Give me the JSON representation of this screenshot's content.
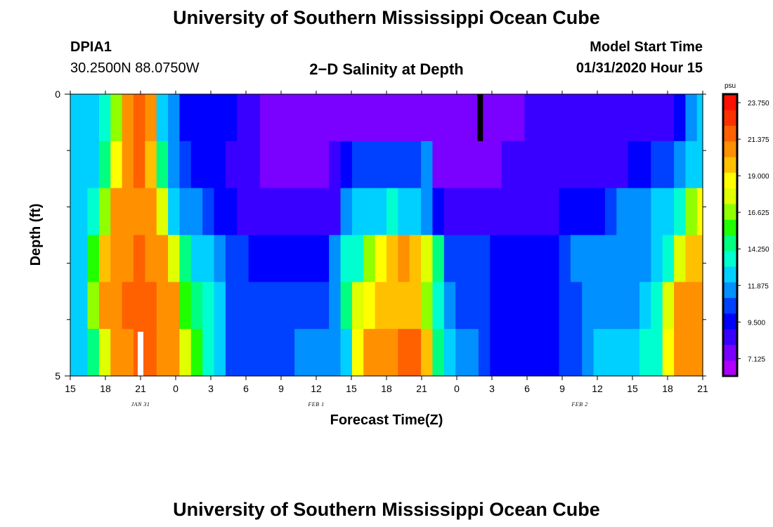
{
  "header": {
    "title": "University of Southern Mississippi Ocean Cube",
    "station_id": "DPIA1",
    "station_coords": "30.2500N 88.0750W",
    "plot_title": "2−D Salinity at Depth",
    "model_start_label": "Model Start Time",
    "model_start_value": "01/31/2020 Hour 15"
  },
  "footer": {
    "title": "University of Southern Mississippi Ocean Cube"
  },
  "chart_data": {
    "type": "heatmap",
    "title": "2−D Salinity at Depth",
    "xlabel": "Forecast Time(Z)",
    "ylabel": "Depth (ft)",
    "x_tick_labels": [
      "15",
      "18",
      "21",
      "0",
      "3",
      "6",
      "9",
      "12",
      "15",
      "18",
      "21",
      "0",
      "3",
      "6",
      "9",
      "12",
      "15",
      "18",
      "21"
    ],
    "date_labels": [
      {
        "text": "JAN 31",
        "at_tick": 2
      },
      {
        "text": "FEB 1",
        "at_tick": 7
      },
      {
        "text": "FEB 2",
        "at_tick": 14.5
      }
    ],
    "y_tick_labels": [
      "0",
      "5"
    ],
    "ylim": [
      0,
      5
    ],
    "colorbar": {
      "unit": "psu",
      "range": [
        6.0,
        24.3
      ],
      "tick_labels": [
        "23.750",
        "21.375",
        "19.000",
        "16.625",
        "14.250",
        "11.875",
        "9.500",
        "7.125"
      ],
      "tick_values": [
        23.75,
        21.375,
        19.0,
        16.625,
        14.25,
        11.875,
        9.5,
        7.125
      ],
      "colors": [
        "#b000ff",
        "#7a00ff",
        "#3a00ff",
        "#0000ff",
        "#0040ff",
        "#0090ff",
        "#00d0ff",
        "#00ffd0",
        "#00ff80",
        "#20ff00",
        "#90ff00",
        "#e0ff00",
        "#ffff00",
        "#ffc000",
        "#ff9000",
        "#ff6000",
        "#ff3000",
        "#ff1000"
      ]
    },
    "x_hours": [
      15,
      16,
      17,
      18,
      19,
      20,
      21,
      22,
      23,
      24,
      25,
      26,
      27,
      28,
      29,
      30,
      31,
      32,
      33,
      34,
      35,
      36,
      37,
      38,
      39,
      40,
      41,
      42,
      43,
      44,
      45,
      46,
      47,
      48,
      49,
      50,
      51,
      52,
      53,
      54,
      55,
      56,
      57,
      58,
      59,
      60,
      61,
      62,
      63,
      64,
      65,
      66,
      67,
      68,
      69,
      70
    ],
    "depth_layers": [
      {
        "name": "layer-1",
        "values": [
          12.2,
          12.2,
          12.6,
          13.8,
          16.2,
          20.7,
          21.9,
          20.5,
          13.0,
          11.5,
          10.0,
          9.7,
          9.2,
          9.2,
          9.3,
          9.0,
          8.7,
          8.0,
          7.3,
          7.3,
          7.4,
          7.4,
          7.4,
          7.4,
          7.5,
          7.6,
          7.6,
          7.6,
          7.6,
          7.6,
          7.6,
          7.6,
          7.5,
          7.4,
          7.4,
          7.6,
          7.8,
          7.8,
          8.0,
          8.0,
          8.2,
          8.3,
          8.4,
          8.5,
          8.6,
          8.7,
          8.7,
          8.8,
          8.9,
          9.0,
          9.0,
          9.0,
          9.0,
          9.2,
          11.5,
          12.2
        ]
      },
      {
        "name": "layer-2",
        "values": [
          12.6,
          12.6,
          12.6,
          14.9,
          18.3,
          20.7,
          21.6,
          19.7,
          14.6,
          12.0,
          10.9,
          9.6,
          9.2,
          9.2,
          8.9,
          8.3,
          8.1,
          7.9,
          7.9,
          7.9,
          7.9,
          7.9,
          7.9,
          8.2,
          9.6,
          10.5,
          10.5,
          10.5,
          10.5,
          10.5,
          10.9,
          11.3,
          7.9,
          7.9,
          7.9,
          7.9,
          8.0,
          8.0,
          8.2,
          8.3,
          8.3,
          8.3,
          8.3,
          8.3,
          8.4,
          8.5,
          8.5,
          8.8,
          9.0,
          9.5,
          9.7,
          10.1,
          10.6,
          11.3,
          12.3,
          12.9
        ]
      },
      {
        "name": "layer-3",
        "values": [
          12.8,
          12.8,
          13.3,
          16.5,
          20.4,
          20.6,
          20.7,
          20.5,
          17.2,
          13.0,
          12.0,
          11.3,
          10.6,
          9.9,
          9.2,
          9.0,
          8.6,
          8.6,
          8.6,
          8.5,
          8.5,
          8.5,
          8.6,
          8.8,
          11.8,
          12.6,
          12.6,
          12.9,
          13.7,
          13.0,
          12.3,
          11.2,
          9.2,
          8.7,
          8.7,
          8.7,
          8.7,
          8.7,
          8.8,
          8.8,
          8.9,
          8.9,
          9.0,
          9.2,
          9.4,
          9.6,
          10.0,
          10.9,
          11.3,
          11.5,
          11.6,
          12.1,
          12.7,
          14.0,
          17.0,
          18.3
        ]
      },
      {
        "name": "layer-4",
        "values": [
          12.5,
          12.5,
          15.5,
          19.9,
          20.8,
          21.1,
          21.3,
          20.9,
          20.5,
          17.4,
          14.6,
          12.9,
          12.2,
          11.4,
          10.4,
          10.4,
          9.9,
          9.7,
          9.7,
          9.7,
          9.7,
          9.7,
          9.7,
          11.2,
          13.4,
          13.9,
          16.5,
          19.0,
          20.0,
          20.4,
          20.0,
          17.4,
          14.2,
          10.7,
          10.4,
          10.4,
          10.4,
          9.6,
          9.4,
          9.4,
          9.4,
          9.5,
          10.0,
          10.4,
          11.2,
          11.4,
          11.6,
          11.6,
          11.6,
          11.7,
          11.8,
          12.3,
          13.2,
          17.8,
          19.7,
          20.2
        ]
      },
      {
        "name": "layer-5",
        "values": [
          12.2,
          12.8,
          16.5,
          20.8,
          21.2,
          21.5,
          22.2,
          21.6,
          21.0,
          20.3,
          15.5,
          14.3,
          13.6,
          12.9,
          11.0,
          10.6,
          10.4,
          10.4,
          10.5,
          10.5,
          10.5,
          10.6,
          10.8,
          11.3,
          14.3,
          18.0,
          19.2,
          19.5,
          19.4,
          19.4,
          19.4,
          16.3,
          13.7,
          11.4,
          11.0,
          11.0,
          10.6,
          9.6,
          9.6,
          9.6,
          9.6,
          9.6,
          10.0,
          10.3,
          11.0,
          11.7,
          11.7,
          11.7,
          11.7,
          12.0,
          12.8,
          13.4,
          17.8,
          20.3,
          20.5,
          20.6
        ]
      },
      {
        "name": "layer-6",
        "values": [
          12.5,
          12.6,
          14.4,
          17.8,
          21.0,
          21.2,
          21.3,
          21.4,
          21.2,
          20.6,
          18.0,
          15.5,
          13.5,
          12.9,
          10.8,
          10.2,
          10.2,
          10.2,
          10.2,
          11.0,
          11.6,
          11.6,
          11.6,
          11.6,
          12.4,
          19.0,
          20.6,
          20.7,
          21.0,
          21.3,
          21.3,
          19.5,
          14.9,
          12.4,
          11.4,
          11.4,
          10.3,
          9.6,
          9.4,
          9.4,
          9.5,
          9.7,
          10.0,
          10.3,
          10.9,
          11.8,
          12.3,
          12.7,
          12.7,
          12.8,
          13.2,
          14.0,
          19.0,
          20.6,
          20.8,
          20.9
        ]
      }
    ],
    "missing_cells": [
      {
        "layer": 1,
        "hour": 50,
        "marker": "black"
      },
      {
        "layer": 6,
        "hour": 21,
        "marker": "white"
      }
    ]
  }
}
